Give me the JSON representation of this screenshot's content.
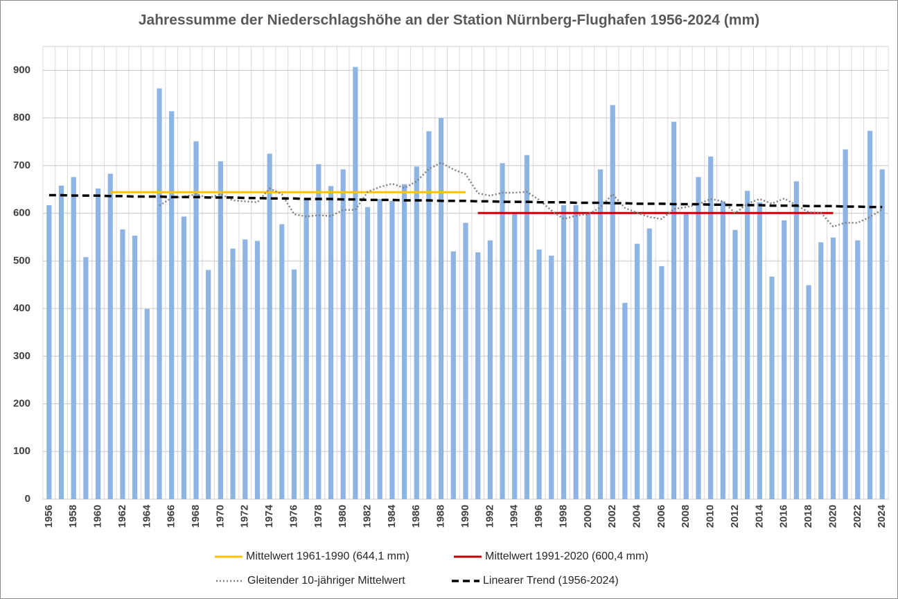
{
  "chart_data": {
    "type": "bar",
    "title": "Jahressumme der Niederschlagshöhe an der Station Nürnberg-Flughafen 1956-2024 (mm)",
    "categories": [
      "1956",
      null,
      "1958",
      null,
      "1960",
      null,
      "1962",
      null,
      "1964",
      null,
      "1966",
      null,
      "1968",
      null,
      "1970",
      null,
      "1972",
      null,
      "1974",
      null,
      "1976",
      null,
      "1978",
      null,
      "1980",
      null,
      "1982",
      null,
      "1984",
      null,
      "1986",
      null,
      "1988",
      null,
      "1990",
      null,
      "1992",
      null,
      "1994",
      null,
      "1996",
      null,
      "1998",
      null,
      "2000",
      null,
      "2002",
      null,
      "2004",
      null,
      "2006",
      null,
      "2008",
      null,
      "2010",
      null,
      "2012",
      null,
      "2014",
      null,
      "2016",
      null,
      "2018",
      null,
      "2020",
      null,
      "2022",
      null,
      "2024"
    ],
    "values": [
      617,
      658,
      676,
      508,
      652,
      683,
      566,
      553,
      399,
      862,
      814,
      593,
      751,
      481,
      709,
      526,
      545,
      542,
      725,
      577,
      482,
      629,
      703,
      657,
      692,
      907,
      613,
      630,
      626,
      661,
      698,
      772,
      800,
      520,
      580,
      518,
      543,
      705,
      600,
      722,
      524,
      511,
      617,
      617,
      600,
      692,
      827,
      412,
      536,
      568,
      489,
      792,
      600,
      676,
      719,
      625,
      565,
      647,
      623,
      467,
      585,
      667,
      449,
      539,
      549,
      734,
      543,
      773,
      692
    ],
    "color": "#8db4e2",
    "ylim": [
      0,
      950
    ],
    "yticks": [
      0,
      100,
      200,
      300,
      400,
      500,
      600,
      700,
      800,
      900
    ],
    "grid": true,
    "series": [
      {
        "name": "Mittelwert 1961-1990 (644,1 mm)",
        "color": "#ffc000",
        "line_style": "solid",
        "values": [
          null,
          null,
          null,
          null,
          null,
          644.1,
          644.1,
          644.1,
          644.1,
          644.1,
          644.1,
          644.1,
          644.1,
          644.1,
          644.1,
          644.1,
          644.1,
          644.1,
          644.1,
          644.1,
          644.1,
          644.1,
          644.1,
          644.1,
          644.1,
          644.1,
          644.1,
          644.1,
          644.1,
          644.1,
          644.1,
          644.1,
          644.1,
          644.1,
          644.1,
          null,
          null,
          null,
          null,
          null,
          null,
          null,
          null,
          null,
          null,
          null,
          null,
          null,
          null,
          null,
          null,
          null,
          null,
          null,
          null,
          null,
          null,
          null,
          null,
          null,
          null,
          null,
          null,
          null,
          null,
          null,
          null,
          null,
          null
        ]
      },
      {
        "name": "Mittelwert 1991-2020 (600,4 mm)",
        "color": "#c00000",
        "line_style": "solid",
        "values": [
          null,
          null,
          null,
          null,
          null,
          null,
          null,
          null,
          null,
          null,
          null,
          null,
          null,
          null,
          null,
          null,
          null,
          null,
          null,
          null,
          null,
          null,
          null,
          null,
          null,
          null,
          null,
          null,
          null,
          null,
          null,
          null,
          null,
          null,
          null,
          600.4,
          600.4,
          600.4,
          600.4,
          600.4,
          600.4,
          600.4,
          600.4,
          600.4,
          600.4,
          600.4,
          600.4,
          600.4,
          600.4,
          600.4,
          600.4,
          600.4,
          600.4,
          600.4,
          600.4,
          600.4,
          600.4,
          600.4,
          600.4,
          600.4,
          600.4,
          600.4,
          600.4,
          600.4,
          600.4,
          null,
          null,
          null,
          null
        ]
      },
      {
        "name": "Gleitender 10-jähriger Mittelwert",
        "color": "#808080",
        "line_style": "dotted",
        "values": [
          null,
          null,
          null,
          null,
          null,
          null,
          null,
          null,
          null,
          616,
          632,
          635,
          640,
          632,
          640,
          627,
          625,
          623,
          652,
          640,
          598,
          593,
          596,
          594,
          607,
          607,
          645,
          655,
          662,
          653,
          667,
          693,
          706,
          692,
          682,
          642,
          637,
          643,
          643,
          645,
          628,
          606,
          588,
          595,
          598,
          612,
          640,
          611,
          601,
          592,
          588,
          609,
          613,
          619,
          630,
          625,
          600,
          620,
          630,
          620,
          631,
          617,
          602,
          601,
          572,
          580,
          580,
          592,
          608
        ]
      },
      {
        "name": "Linearer Trend (1956-2024)",
        "color": "#000000",
        "line_style": "dashed",
        "values": [
          638,
          638,
          637,
          637,
          637,
          636,
          636,
          635,
          635,
          635,
          634,
          634,
          634,
          633,
          633,
          633,
          632,
          632,
          631,
          631,
          631,
          630,
          630,
          630,
          629,
          629,
          628,
          628,
          628,
          627,
          627,
          627,
          626,
          626,
          626,
          625,
          625,
          624,
          624,
          624,
          623,
          623,
          623,
          622,
          622,
          622,
          621,
          621,
          620,
          620,
          620,
          619,
          619,
          619,
          618,
          618,
          617,
          617,
          617,
          616,
          616,
          616,
          615,
          615,
          615,
          614,
          614,
          613,
          613
        ]
      }
    ]
  }
}
